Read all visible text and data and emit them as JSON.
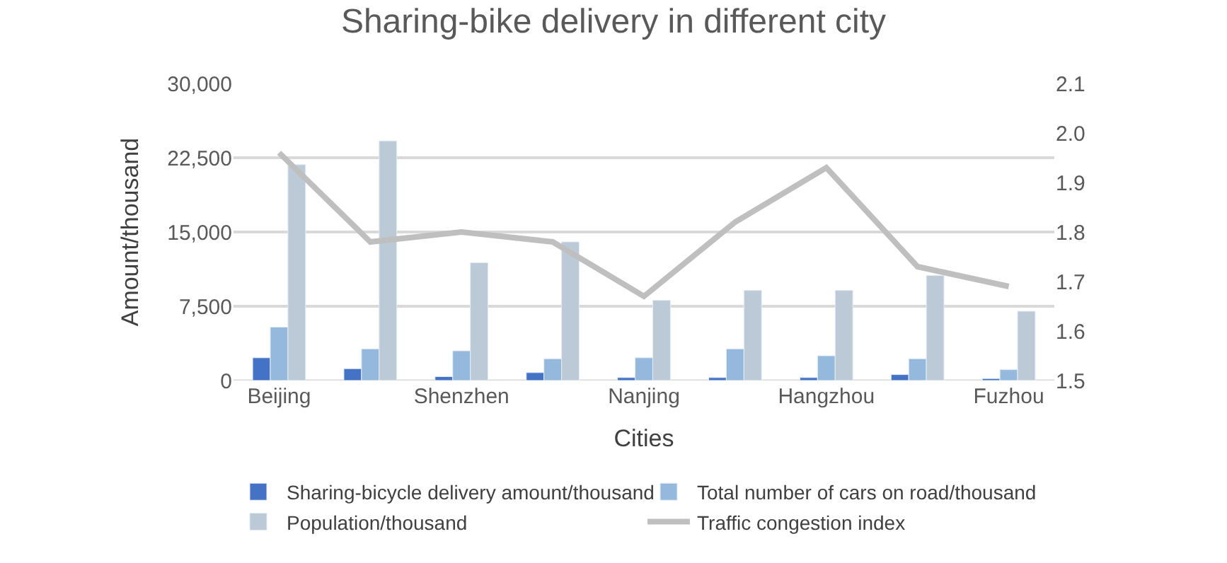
{
  "chart_data": {
    "type": "bar",
    "title": "Sharing-bike delivery in different city",
    "xlabel": "Cities",
    "ylabel": "Amount/thousand",
    "categories": [
      "Beijing",
      null,
      "Shenzhen",
      null,
      "Nanjing",
      null,
      "Hangzhou",
      null,
      "Fuzhou"
    ],
    "series": [
      {
        "name": "Sharing-bicycle delivery amount/thousand",
        "color": "#4472c4",
        "values": [
          2300,
          1200,
          400,
          800,
          300,
          300,
          300,
          600,
          200
        ]
      },
      {
        "name": "Total number of cars on road/thousand",
        "color": "#95b9dc",
        "values": [
          5400,
          3200,
          3000,
          2200,
          2300,
          3200,
          2500,
          2200,
          1100
        ]
      },
      {
        "name": "Population/thousand",
        "color": "#bccad8",
        "values": [
          21800,
          24200,
          11900,
          14000,
          8100,
          9100,
          9100,
          10600,
          7000
        ]
      },
      {
        "name": "Traffic congestion index",
        "type": "line",
        "axis": "y2",
        "color": "#bfbfbf",
        "values": [
          1.96,
          1.78,
          1.8,
          1.78,
          1.67,
          1.82,
          1.93,
          1.73,
          1.69
        ]
      }
    ],
    "ylim": [
      0,
      30000
    ],
    "yticks": [
      0,
      {
        "value": 7500,
        "label": "7,500"
      },
      {
        "value": 15000,
        "label": "15,000"
      },
      {
        "value": 22500,
        "label": "22,500"
      },
      {
        "value": 30000,
        "label": "30,000"
      }
    ],
    "y2lim": [
      1.5,
      2.1
    ],
    "y2ticks": [
      1.5,
      1.6,
      1.7,
      1.8,
      1.9,
      {
        "value": 2.0,
        "label": "2.0"
      },
      2.1
    ],
    "grid": "y",
    "legend": "bottom",
    "marker": "none",
    "line_style": "solid"
  }
}
